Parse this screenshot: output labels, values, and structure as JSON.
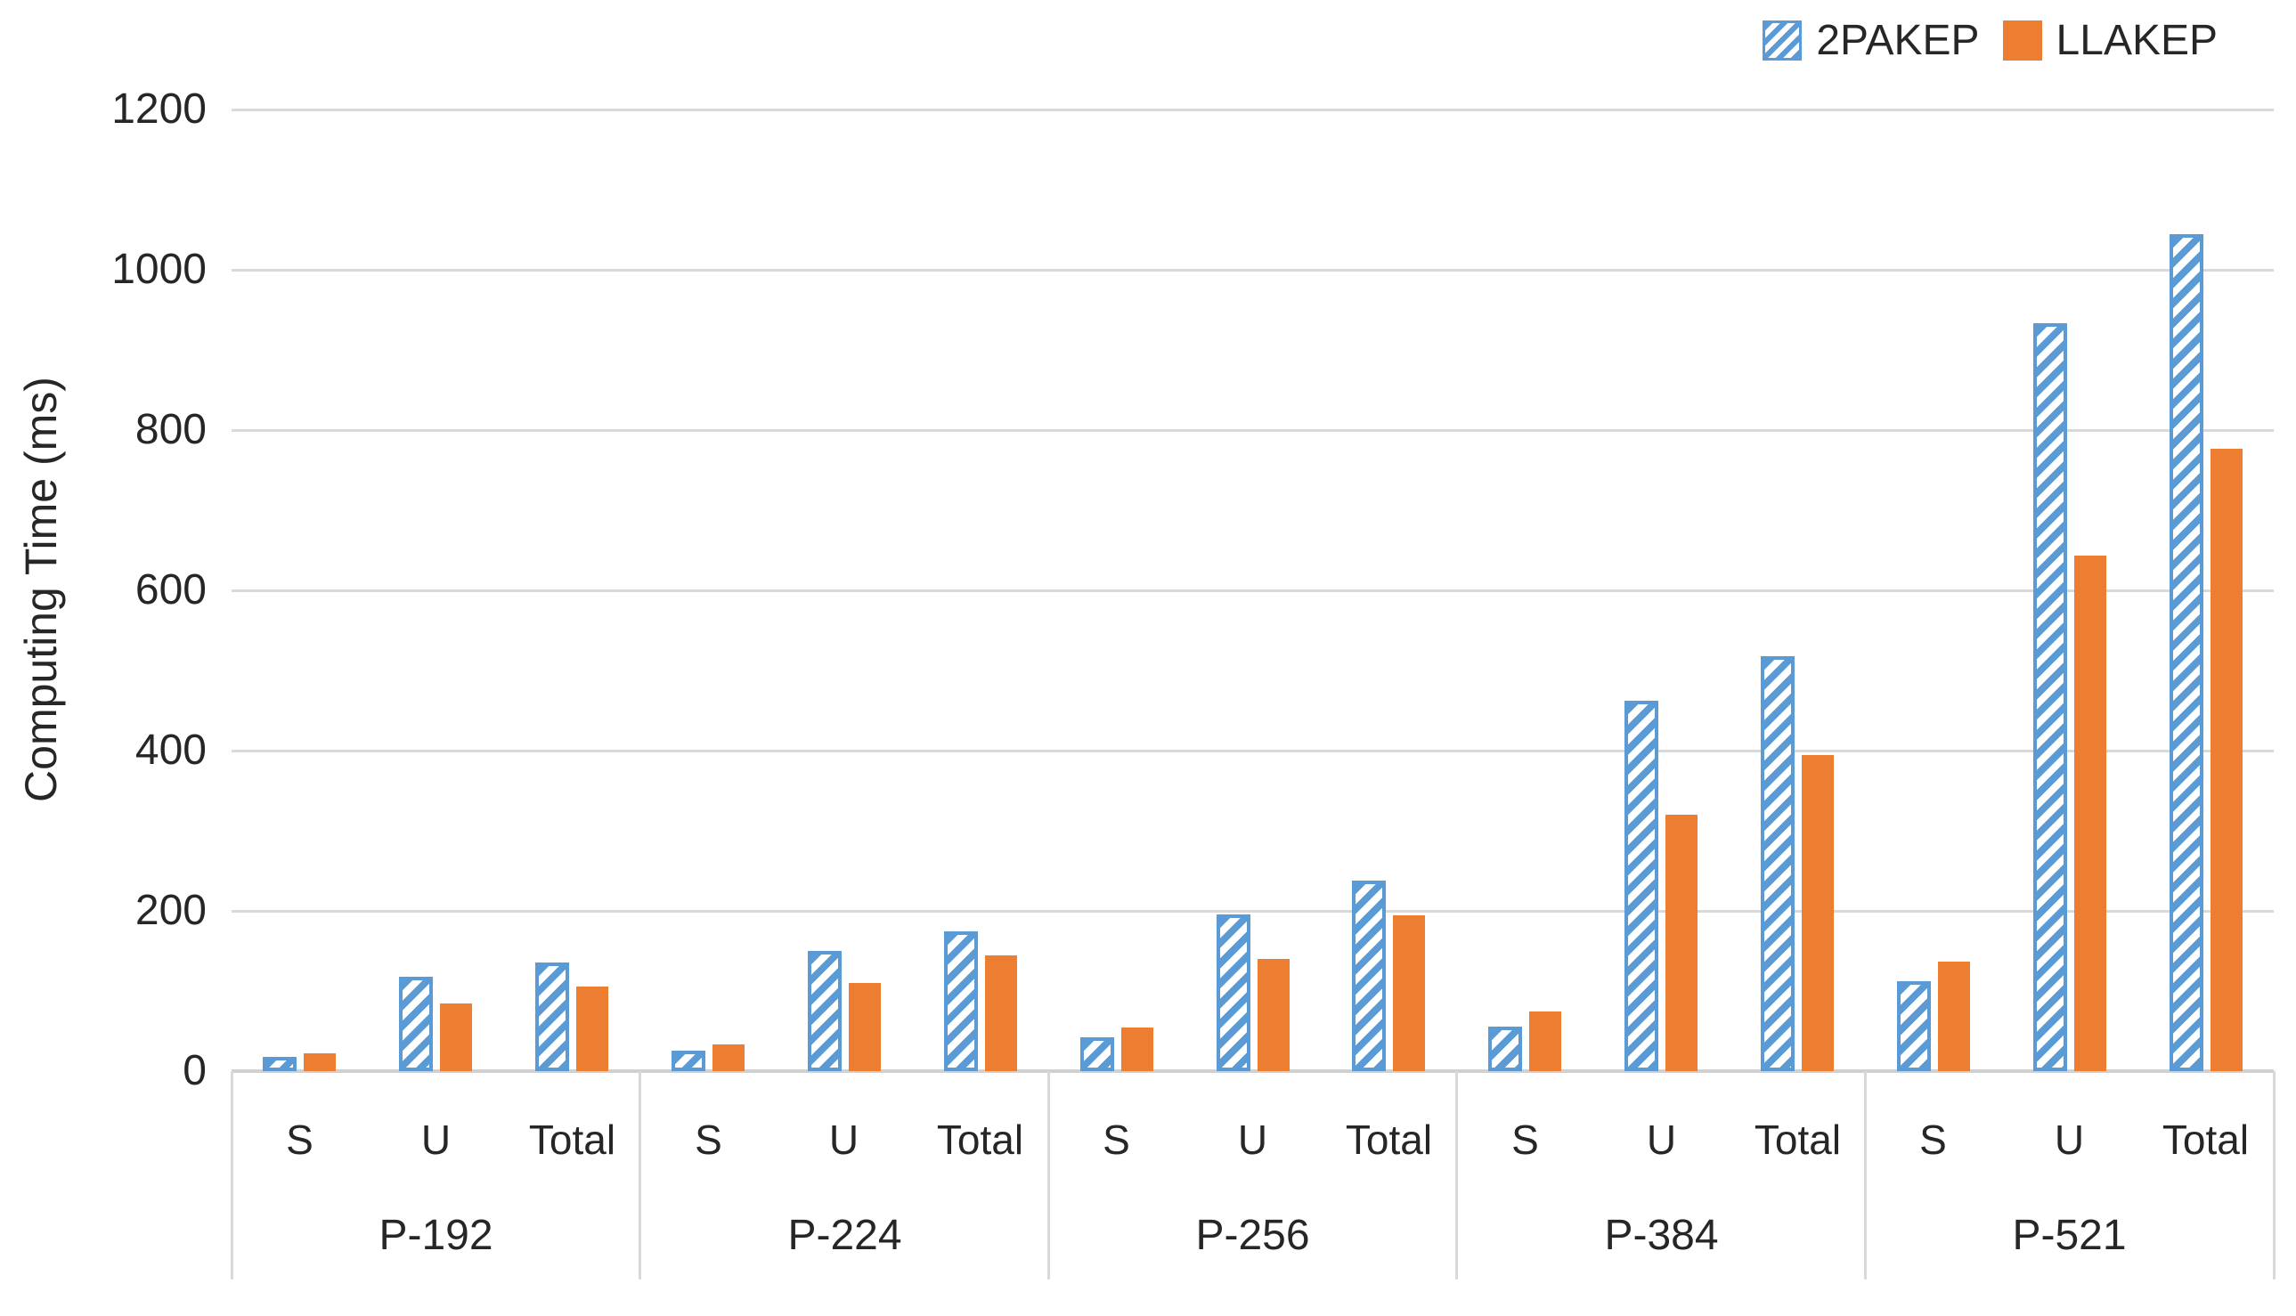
{
  "chart_data": {
    "type": "bar",
    "title": "",
    "ylabel": "Computing Time (ms)",
    "ylim": [
      0,
      1200
    ],
    "y_ticks": [
      0,
      200,
      400,
      600,
      800,
      1000,
      1200
    ],
    "grid": true,
    "legend_position": "top-right",
    "groups": [
      "P-192",
      "P-224",
      "P-256",
      "P-384",
      "P-521"
    ],
    "subcategories": [
      "S",
      "U",
      "Total"
    ],
    "series": [
      {
        "name": "2PAKEP",
        "color": "#5B9BD5",
        "fill": "diagonal-hatch",
        "values": [
          [
            18,
            118,
            135
          ],
          [
            26,
            150,
            174
          ],
          [
            42,
            195,
            238
          ],
          [
            56,
            462,
            518
          ],
          [
            112,
            933,
            1044
          ]
        ]
      },
      {
        "name": "LLAKEP",
        "color": "#ED7D31",
        "fill": "solid",
        "values": [
          [
            22,
            84,
            105
          ],
          [
            33,
            110,
            144
          ],
          [
            54,
            140,
            194
          ],
          [
            74,
            320,
            394
          ],
          [
            137,
            643,
            777
          ]
        ]
      }
    ]
  },
  "colors": {
    "gridline": "#D9D9D9",
    "axis_line": "#D0D0D0",
    "text": "#262626",
    "hatch_background": "#FFFFFF"
  }
}
